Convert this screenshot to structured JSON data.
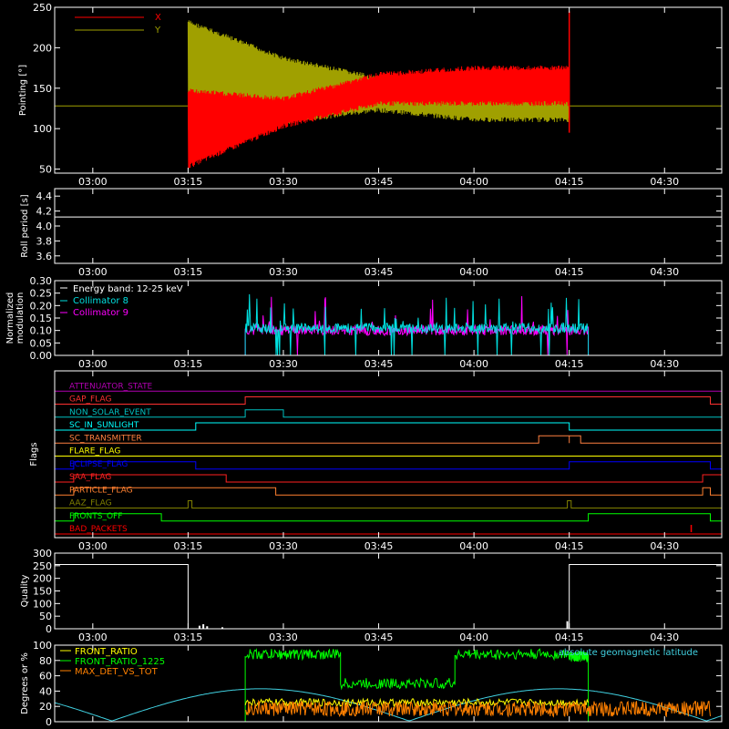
{
  "time_axis": {
    "ticks": [
      "03:00",
      "03:15",
      "03:30",
      "03:45",
      "04:00",
      "04:15",
      "04:30"
    ]
  },
  "colors": {
    "pointing_x": "#ff0000",
    "pointing_y": "#a0a000",
    "roll": "#ffffff",
    "collimator_8": "#00e0e0",
    "collimator_9": "#ff00ff",
    "front_ratio": "#ffff00",
    "front_ratio_1225": "#00ff00",
    "max_det_vs_tot": "#ff8000",
    "geomag_lat": "#40d0e0"
  },
  "chart_data": [
    {
      "id": "pointing",
      "type": "line",
      "ylabel": "Pointing [°]",
      "ylim": [
        45,
        250
      ],
      "yticks": [
        50,
        100,
        150,
        200,
        250
      ],
      "legend": "top-left",
      "x_hours": [
        2.9,
        3.25,
        3.5,
        3.75,
        4.0,
        4.25,
        4.6
      ],
      "series": [
        {
          "name": "X",
          "color_key": "pointing_x",
          "baseline": 128,
          "start_hour": 3.25,
          "end_hour": 4.25,
          "envelope_low": [
            [
              3.25,
              50
            ],
            [
              3.5,
              100
            ],
            [
              3.75,
              128
            ],
            [
              4.0,
              128
            ],
            [
              4.25,
              128
            ]
          ],
          "envelope_high": [
            [
              3.25,
              150
            ],
            [
              3.5,
              140
            ],
            [
              3.75,
              170
            ],
            [
              4.0,
              178
            ],
            [
              4.25,
              178
            ]
          ]
        },
        {
          "name": "Y",
          "color_key": "pointing_y",
          "baseline": 128,
          "start_hour": 3.25,
          "end_hour": 4.25,
          "envelope_low": [
            [
              3.25,
              95
            ],
            [
              3.5,
              105
            ],
            [
              3.75,
              120
            ],
            [
              4.0,
              108
            ],
            [
              4.25,
              108
            ]
          ],
          "envelope_high": [
            [
              3.25,
              235
            ],
            [
              3.5,
              190
            ],
            [
              3.75,
              165
            ],
            [
              4.0,
              153
            ],
            [
              4.25,
              153
            ]
          ]
        }
      ]
    },
    {
      "id": "roll",
      "type": "line",
      "ylabel": "Roll period [s]",
      "ylim": [
        3.5,
        4.5
      ],
      "yticks": [
        3.6,
        3.8,
        4.0,
        4.2,
        4.4
      ],
      "value": 4.12
    },
    {
      "id": "modulation",
      "type": "line",
      "ylabel": "Normalized modulation",
      "ylim": [
        0,
        0.3
      ],
      "yticks": [
        0.0,
        0.05,
        0.1,
        0.15,
        0.2,
        0.25,
        0.3
      ],
      "ytick_labels": [
        "0.00",
        "0.05",
        "0.10",
        "0.15",
        "0.20",
        "0.25",
        "0.30"
      ],
      "annotation": "Energy band: 12-25 keV",
      "series": [
        {
          "name": "Collimator 8",
          "color_key": "collimator_8",
          "start_hour": 3.4,
          "end_hour": 4.3,
          "level": 0.11
        },
        {
          "name": "Collimator 9",
          "color_key": "collimator_9",
          "start_hour": 3.4,
          "end_hour": 4.3,
          "level": 0.1
        }
      ]
    },
    {
      "id": "flags",
      "type": "line",
      "ylabel": "Flags",
      "series": [
        {
          "name": "ATTENUATOR_STATE",
          "color": "#b000b0",
          "steps": []
        },
        {
          "name": "GAP_FLAG",
          "color": "#ff3030",
          "steps": [
            [
              3.4,
              4.62
            ]
          ]
        },
        {
          "name": "NON_SOLAR_EVENT",
          "color": "#00c0c0",
          "steps": [
            [
              3.4,
              3.5
            ]
          ]
        },
        {
          "name": "SC_IN_SUNLIGHT",
          "color": "#00ffff",
          "steps": [
            [
              3.27,
              4.25
            ]
          ]
        },
        {
          "name": "SC_TRANSMITTER",
          "color": "#ff8040",
          "steps": [
            [
              4.17,
              4.25
            ],
            [
              4.25,
              4.28
            ]
          ]
        },
        {
          "name": "FLARE_FLAG",
          "color": "#ffff00",
          "steps": []
        },
        {
          "name": "ECLIPSE_FLAG",
          "color": "#0000ff",
          "steps": [
            [
              2.95,
              3.27
            ],
            [
              4.25,
              4.62
            ]
          ]
        },
        {
          "name": "SAA_FLAG",
          "color": "#ff2020",
          "steps": [
            [
              2.95,
              3.35
            ],
            [
              4.6,
              4.65
            ]
          ]
        },
        {
          "name": "PARTICLE_FLAG",
          "color": "#ff8030",
          "steps": [
            [
              2.95,
              3.48
            ],
            [
              4.6,
              4.62
            ]
          ]
        },
        {
          "name": "AAZ_FLAG",
          "color": "#808000",
          "steps": [
            [
              3.25,
              3.26
            ],
            [
              4.245,
              4.255
            ]
          ]
        },
        {
          "name": "FRONTS_OFF",
          "color": "#00ff00",
          "steps": [
            [
              2.95,
              3.18
            ],
            [
              4.3,
              4.62
            ]
          ]
        },
        {
          "name": "BAD_PACKETS",
          "color": "#ff0000",
          "steps": []
        }
      ]
    },
    {
      "id": "quality",
      "type": "line",
      "ylabel": "Quality",
      "ylim": [
        0,
        300
      ],
      "yticks": [
        0,
        50,
        100,
        150,
        200,
        250,
        300
      ],
      "value_high": 255
    },
    {
      "id": "ratios",
      "type": "line",
      "ylabel": "Degrees or %",
      "ylim": [
        0,
        100
      ],
      "yticks": [
        0,
        20,
        40,
        60,
        80,
        100
      ],
      "series": [
        {
          "name": "FRONT_RATIO",
          "color_key": "front_ratio"
        },
        {
          "name": "FRONT_RATIO_1225",
          "color_key": "front_ratio_1225"
        },
        {
          "name": "MAX_DET_VS_TOT",
          "color_key": "max_det_vs_tot"
        },
        {
          "name": "absolute geomagnetic latitude",
          "color_key": "geomag_lat"
        }
      ]
    }
  ]
}
